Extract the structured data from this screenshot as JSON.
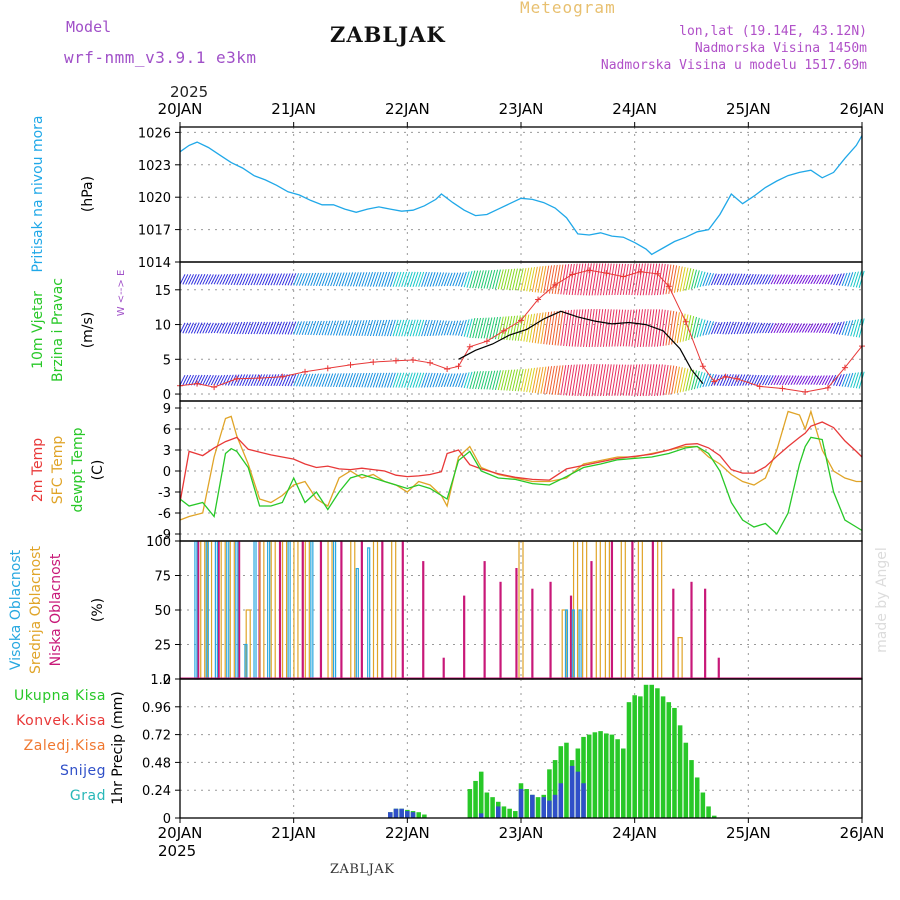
{
  "header": {
    "model_label": "Model",
    "model_run": "wrf-nmm_v3.9.1 e3km",
    "station": "ZABLJAK",
    "product": "Meteogram",
    "lonlat": "lon,lat (19.14E, 43.12N)",
    "altitude": "Nadmorska Visina 1450m",
    "model_altitude": "Nadmorska Visina u modelu 1517.69m",
    "year_top": "2025",
    "year_bottom": "2025",
    "footer_station": "ZABLJAK",
    "watermark": "made by Angel"
  },
  "colors": {
    "pressure": "#20a8e8",
    "temp2m": "#e83838",
    "sfc_temp": "#e0a428",
    "dewpoint": "#28c828",
    "high_cloud": "#28a8e0",
    "mid_cloud": "#e0a428",
    "low_cloud": "#c81878",
    "precip_total": "#28c828",
    "precip_snow": "#3050c8",
    "gust_marker": "#e83838",
    "wind_speed": "#000000",
    "axis": "#000000",
    "grid": "#9a9a9a"
  },
  "chart_data": [
    {
      "id": "pressure",
      "type": "line",
      "ylabel": "Pritisak na nivou mora",
      "unit": "(hPa)",
      "ylim": [
        1014,
        1026.5
      ],
      "yticks": [
        1014,
        1017,
        1020,
        1023,
        1026
      ],
      "x_days": [
        0,
        0.08,
        0.15,
        0.25,
        0.35,
        0.45,
        0.55,
        0.65,
        0.75,
        0.85,
        0.95,
        1.05,
        1.15,
        1.25,
        1.35,
        1.45,
        1.55,
        1.65,
        1.75,
        1.85,
        1.95,
        2.05,
        2.15,
        2.25,
        2.3,
        2.4,
        2.5,
        2.6,
        2.7,
        2.8,
        2.9,
        3.0,
        3.1,
        3.2,
        3.3,
        3.4,
        3.5,
        3.6,
        3.7,
        3.8,
        3.9,
        4.0,
        4.1,
        4.15,
        4.25,
        4.35,
        4.45,
        4.55,
        4.65,
        4.75,
        4.85,
        4.95,
        5.05,
        5.15,
        5.25,
        5.35,
        5.45,
        5.55,
        5.65,
        5.75,
        5.85,
        5.95,
        6.0
      ],
      "values": [
        1024.2,
        1024.8,
        1025.1,
        1024.6,
        1023.9,
        1023.2,
        1022.7,
        1022.0,
        1021.6,
        1021.1,
        1020.5,
        1020.2,
        1019.7,
        1019.3,
        1019.3,
        1018.9,
        1018.6,
        1018.9,
        1019.1,
        1018.9,
        1018.7,
        1018.8,
        1019.2,
        1019.8,
        1020.3,
        1019.5,
        1018.8,
        1018.3,
        1018.4,
        1018.9,
        1019.4,
        1019.9,
        1019.8,
        1019.5,
        1019.0,
        1018.1,
        1016.6,
        1016.5,
        1016.7,
        1016.4,
        1016.3,
        1015.8,
        1015.2,
        1014.7,
        1015.3,
        1015.9,
        1016.3,
        1016.8,
        1017.0,
        1018.4,
        1020.3,
        1019.4,
        1020.1,
        1020.9,
        1021.5,
        1022.0,
        1022.3,
        1022.5,
        1021.8,
        1022.3,
        1023.6,
        1024.8,
        1025.7
      ]
    },
    {
      "id": "wind",
      "type": "line",
      "ylabel_1": "10m Vjetar",
      "ylabel_2": "Brzina i Pravac",
      "unit": "(m/s)",
      "direction_legend": "W <--> E",
      "ylim": [
        -1,
        19
      ],
      "yticks": [
        0,
        5,
        10,
        15
      ],
      "speed": {
        "x_days": [
          2.45,
          2.6,
          2.75,
          2.9,
          3.05,
          3.2,
          3.35,
          3.5,
          3.65,
          3.8,
          3.95,
          4.1,
          4.25,
          4.4,
          4.5,
          4.6
        ],
        "values": [
          5.0,
          6.3,
          7.2,
          8.5,
          9.3,
          10.8,
          11.9,
          11.1,
          10.5,
          10.1,
          10.3,
          10.0,
          9.1,
          6.5,
          3.5,
          1.5
        ]
      },
      "gust": {
        "x_days": [
          0.0,
          0.15,
          0.3,
          0.5,
          0.7,
          0.9,
          1.1,
          1.3,
          1.5,
          1.7,
          1.9,
          2.05,
          2.2,
          2.35,
          2.45,
          2.55,
          2.7,
          2.85,
          3.0,
          3.15,
          3.3,
          3.45,
          3.6,
          3.75,
          3.9,
          4.05,
          4.2,
          4.3,
          4.45,
          4.6,
          4.7,
          4.8,
          4.9,
          5.1,
          5.3,
          5.5,
          5.7,
          5.85,
          6.0
        ],
        "values": [
          1.2,
          1.5,
          1.0,
          2.2,
          2.3,
          2.5,
          3.2,
          3.7,
          4.2,
          4.6,
          4.8,
          4.9,
          4.5,
          3.6,
          4.0,
          6.8,
          7.6,
          9.1,
          10.6,
          13.6,
          15.7,
          17.2,
          17.8,
          17.4,
          16.9,
          17.6,
          17.3,
          15.5,
          10.4,
          4.0,
          1.8,
          2.5,
          2.2,
          1.1,
          0.8,
          0.3,
          0.9,
          3.8,
          6.9
        ]
      },
      "barb_rows_ms": [
        2,
        9.5,
        16.5
      ],
      "extra_rows_ms": [
        5,
        10,
        15
      ]
    },
    {
      "id": "temperature",
      "type": "line",
      "ylabel_1": "2m Temp",
      "ylabel_2": "SFC Temp",
      "ylabel_3": "dewpt Temp",
      "unit": "(C)",
      "ylim": [
        -10,
        10
      ],
      "yticks": [
        -9,
        -6,
        -3,
        0,
        3,
        6,
        9
      ],
      "x_days": [
        0,
        0.08,
        0.2,
        0.3,
        0.4,
        0.45,
        0.5,
        0.6,
        0.7,
        0.8,
        0.9,
        1.0,
        1.1,
        1.2,
        1.3,
        1.4,
        1.5,
        1.6,
        1.7,
        1.8,
        1.9,
        2.0,
        2.1,
        2.2,
        2.3,
        2.35,
        2.45,
        2.55,
        2.65,
        2.8,
        2.95,
        3.1,
        3.25,
        3.4,
        3.55,
        3.7,
        3.85,
        4.0,
        4.15,
        4.3,
        4.45,
        4.55,
        4.65,
        4.75,
        4.85,
        4.95,
        5.05,
        5.15,
        5.25,
        5.35,
        5.45,
        5.5,
        5.55,
        5.65,
        5.75,
        5.85,
        5.95,
        6.0
      ],
      "series": [
        {
          "name": "2m Temp",
          "values": [
            -4.5,
            2.8,
            2.2,
            3.3,
            4.2,
            4.5,
            4.8,
            3.1,
            2.7,
            2.3,
            2.0,
            1.7,
            1.0,
            0.5,
            0.7,
            0.3,
            0.2,
            0.4,
            0.2,
            0.0,
            -0.6,
            -0.8,
            -0.7,
            -0.5,
            -0.1,
            2.5,
            3.0,
            0.9,
            0.3,
            -0.4,
            -0.9,
            -1.2,
            -1.3,
            0.3,
            0.8,
            1.3,
            1.8,
            2.1,
            2.4,
            3.0,
            3.8,
            3.9,
            3.3,
            2.2,
            0.2,
            -0.3,
            -0.3,
            0.6,
            2.1,
            3.5,
            4.8,
            5.4,
            6.4,
            7.0,
            6.2,
            4.3,
            2.8,
            2.0
          ]
        },
        {
          "name": "SFC Temp",
          "values": [
            -7.0,
            -6.5,
            -6.0,
            2.0,
            7.5,
            7.8,
            5.0,
            1.0,
            -4.0,
            -4.5,
            -3.5,
            -2.0,
            -1.5,
            -4.0,
            -5.0,
            -1.0,
            0.0,
            -1.0,
            -0.5,
            -1.5,
            -2.0,
            -3.0,
            -1.5,
            -2.0,
            -3.5,
            -5.0,
            2.0,
            3.5,
            0.5,
            -0.5,
            -1.0,
            -1.5,
            -1.5,
            -1.0,
            1.0,
            1.5,
            2.0,
            2.0,
            2.5,
            3.0,
            3.5,
            3.5,
            2.0,
            1.0,
            -0.5,
            -1.5,
            -2.0,
            -1.0,
            3.0,
            8.5,
            8.0,
            6.0,
            8.5,
            3.0,
            0.0,
            -1.0,
            -1.5,
            -1.5
          ]
        },
        {
          "name": "dewpt Temp",
          "values": [
            -4.0,
            -5.0,
            -4.5,
            -6.5,
            2.5,
            3.2,
            2.8,
            0.5,
            -5.0,
            -5.0,
            -4.5,
            -1.0,
            -4.5,
            -3.0,
            -5.5,
            -3.0,
            -1.0,
            -0.5,
            -1.0,
            -1.5,
            -2.0,
            -2.5,
            -2.0,
            -2.5,
            -3.5,
            -4.0,
            1.5,
            2.8,
            0.0,
            -1.0,
            -1.2,
            -1.8,
            -2.0,
            -0.8,
            0.5,
            1.0,
            1.6,
            1.8,
            2.0,
            2.5,
            3.3,
            3.5,
            2.5,
            0.0,
            -4.5,
            -7.0,
            -8.0,
            -7.5,
            -9.0,
            -6.0,
            1.0,
            3.5,
            4.8,
            4.5,
            -3.0,
            -7.0,
            -8.0,
            -8.5
          ]
        }
      ]
    },
    {
      "id": "clouds",
      "type": "bar",
      "ylabel_1": "Visoka Oblacnost",
      "ylabel_2": "Srednja Oblacnost",
      "ylabel_3": "Niska Oblacnost",
      "unit": "(%)",
      "ylim": [
        0,
        100
      ],
      "yticks": [
        0,
        25,
        50,
        75,
        100
      ],
      "low_cloud": {
        "x_days": [
          0.16,
          0.34,
          0.52,
          0.7,
          0.88,
          1.08,
          1.24,
          1.42,
          1.6,
          1.78,
          1.96,
          2.14,
          2.32,
          2.5,
          2.68,
          2.82,
          2.96,
          3.1,
          3.26,
          3.44,
          3.62,
          3.8,
          3.98,
          4.16,
          4.34,
          4.5,
          4.62,
          4.74
        ],
        "values": [
          100,
          100,
          100,
          100,
          100,
          100,
          100,
          100,
          100,
          100,
          100,
          85,
          15,
          60,
          85,
          70,
          80,
          65,
          70,
          60,
          85,
          100,
          100,
          100,
          65,
          70,
          65,
          15
        ]
      },
      "mid_cloud": {
        "x_days": [
          0.2,
          0.26,
          0.38,
          0.46,
          0.6,
          0.72,
          0.82,
          0.92,
          1.02,
          1.12,
          1.32,
          1.52,
          1.72,
          1.88,
          3.0,
          3.38,
          3.48,
          3.56,
          3.68,
          3.76,
          3.9,
          4.05,
          4.22,
          4.4
        ],
        "values": [
          100,
          100,
          100,
          100,
          50,
          100,
          100,
          100,
          100,
          100,
          100,
          100,
          100,
          100,
          100,
          50,
          100,
          100,
          100,
          100,
          100,
          100,
          100,
          30
        ]
      },
      "high_cloud": {
        "x_days": [
          0.14,
          0.24,
          0.32,
          0.42,
          0.5,
          0.58,
          0.66,
          0.78,
          0.96,
          1.16,
          1.36,
          1.56,
          1.66,
          3.4,
          3.46,
          3.52
        ],
        "values": [
          100,
          100,
          100,
          100,
          100,
          25,
          100,
          100,
          100,
          100,
          100,
          80,
          95,
          50,
          50,
          50
        ]
      }
    },
    {
      "id": "precip",
      "type": "bar",
      "ylabel": "1hr Precip (mm)",
      "legend": [
        "Ukupna Kisa",
        "Konvek.Kisa",
        "Zaledj.Kisa",
        "Snijeg",
        "Grad"
      ],
      "legend_colors": [
        "#28c828",
        "#e83838",
        "#f07830",
        "#3050c8",
        "#28b8b8"
      ],
      "ylim": [
        0,
        1.2
      ],
      "yticks": [
        0,
        0.24,
        0.48,
        0.72,
        0.96,
        1.2
      ],
      "x_days": [
        1.85,
        1.9,
        1.95,
        2.0,
        2.05,
        2.1,
        2.15,
        2.55,
        2.6,
        2.65,
        2.7,
        2.75,
        2.8,
        2.85,
        2.9,
        2.95,
        3.0,
        3.05,
        3.1,
        3.15,
        3.2,
        3.25,
        3.3,
        3.35,
        3.4,
        3.45,
        3.5,
        3.55,
        3.6,
        3.65,
        3.7,
        3.75,
        3.8,
        3.85,
        3.9,
        3.95,
        4.0,
        4.05,
        4.1,
        4.15,
        4.2,
        4.25,
        4.3,
        4.35,
        4.4,
        4.45,
        4.5,
        4.55,
        4.6,
        4.65,
        4.7
      ],
      "values": [
        0.05,
        0.08,
        0.08,
        0.07,
        0.06,
        0.05,
        0.03,
        0.25,
        0.32,
        0.4,
        0.22,
        0.18,
        0.14,
        0.1,
        0.08,
        0.06,
        0.3,
        0.25,
        0.2,
        0.18,
        0.2,
        0.42,
        0.5,
        0.62,
        0.65,
        0.5,
        0.6,
        0.7,
        0.72,
        0.74,
        0.75,
        0.73,
        0.72,
        0.68,
        0.6,
        1.0,
        1.06,
        1.05,
        1.15,
        1.15,
        1.12,
        1.05,
        1.0,
        0.95,
        0.8,
        0.65,
        0.5,
        0.35,
        0.22,
        0.1,
        0.02
      ],
      "snow_x_days": [
        1.85,
        1.9,
        1.95,
        2.0,
        2.05,
        2.65,
        2.8,
        3.0,
        3.1,
        3.2,
        3.25,
        3.3,
        3.35,
        3.45,
        3.5,
        3.55
      ],
      "snow_values": [
        0.05,
        0.08,
        0.08,
        0.06,
        0.05,
        0.04,
        0.1,
        0.25,
        0.2,
        0.18,
        0.15,
        0.2,
        0.3,
        0.45,
        0.4,
        0.3
      ]
    }
  ],
  "x_axis": {
    "labels": [
      "20JAN",
      "21JAN",
      "22JAN",
      "23JAN",
      "24JAN",
      "25JAN",
      "26JAN"
    ],
    "day_values": [
      0,
      1,
      2,
      3,
      4,
      5,
      6
    ]
  }
}
